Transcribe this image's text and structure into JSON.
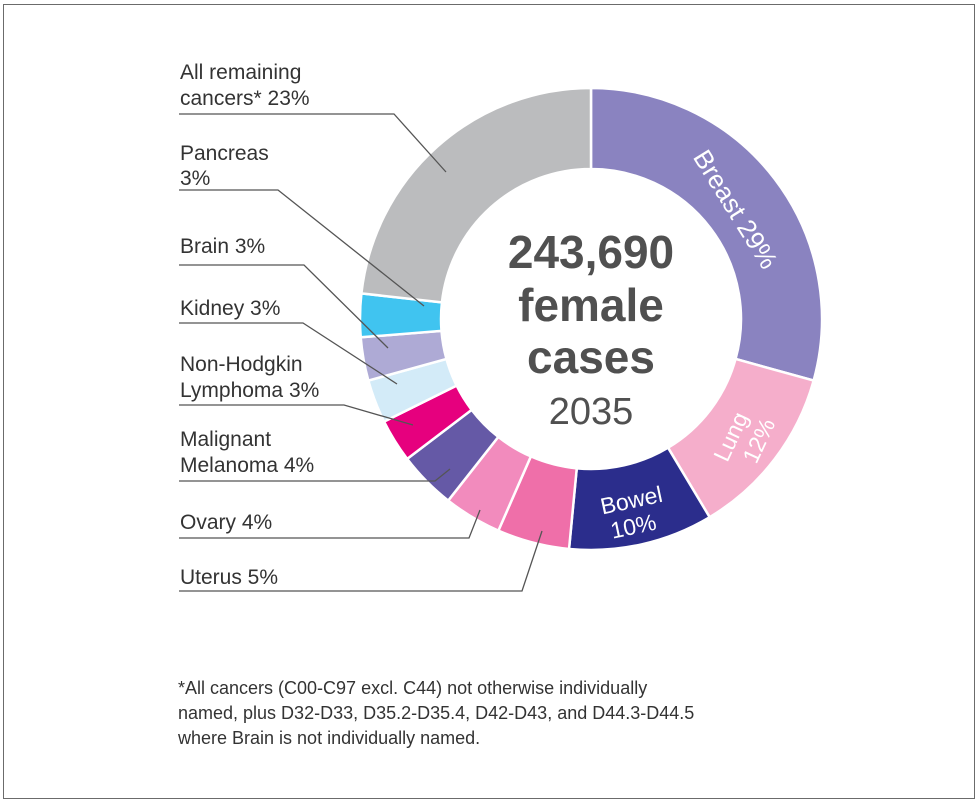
{
  "chart_data": {
    "type": "pie",
    "variant": "donut",
    "center": {
      "line1": "243,690",
      "line2": "female",
      "line3": "cases",
      "line4": "2035"
    },
    "slices": [
      {
        "key": "breast",
        "label": "Breast",
        "pct_text": "29%",
        "value": 29,
        "color": "#8a83c0"
      },
      {
        "key": "lung",
        "label": "Lung",
        "pct_text": "12%",
        "value": 12,
        "color": "#f5aecb"
      },
      {
        "key": "bowel",
        "label": "Bowel",
        "pct_text": "10%",
        "value": 10,
        "color": "#2b2d8c"
      },
      {
        "key": "uterus",
        "label": "Uterus",
        "pct_text": "5%",
        "value": 5,
        "color": "#ef6fa9"
      },
      {
        "key": "ovary",
        "label": "Ovary",
        "pct_text": "4%",
        "value": 4,
        "color": "#f28bbd"
      },
      {
        "key": "melanoma",
        "label": "Malignant Melanoma",
        "line1": "Malignant",
        "line2": "Melanoma 4%",
        "pct_text": "4%",
        "value": 4,
        "color": "#6559a6"
      },
      {
        "key": "nhl",
        "label": "Non-Hodgkin Lymphoma",
        "line1": "Non-Hodgkin",
        "line2": "Lymphoma 3%",
        "pct_text": "3%",
        "value": 3,
        "color": "#e6007e"
      },
      {
        "key": "kidney",
        "label": "Kidney",
        "line1": "Kidney 3%",
        "pct_text": "3%",
        "value": 3,
        "color": "#d3ebf8"
      },
      {
        "key": "brain",
        "label": "Brain",
        "line1": "Brain 3%",
        "pct_text": "3%",
        "value": 3,
        "color": "#aeaad5"
      },
      {
        "key": "pancreas",
        "label": "Pancreas",
        "line1": "Pancreas",
        "line2": "3%",
        "pct_text": "3%",
        "value": 3,
        "color": "#40c4f0"
      },
      {
        "key": "remaining",
        "label": "All remaining cancers*",
        "line1": "All remaining",
        "line2": "cancers* 23%",
        "pct_text": "23%",
        "value": 23,
        "color": "#bbbcbe"
      }
    ],
    "outside_labels": {
      "ovary": {
        "line1": "Ovary 4%"
      },
      "uterus": {
        "line1": "Uterus 5%"
      }
    }
  },
  "footnote": {
    "line1": "*All cancers (C00-C97 excl. C44) not otherwise individually",
    "line2": "named, plus D32-D33, D35.2-D35.4, D42-D43, and D44.3-D44.5",
    "line3": "where Brain is not individually named."
  }
}
